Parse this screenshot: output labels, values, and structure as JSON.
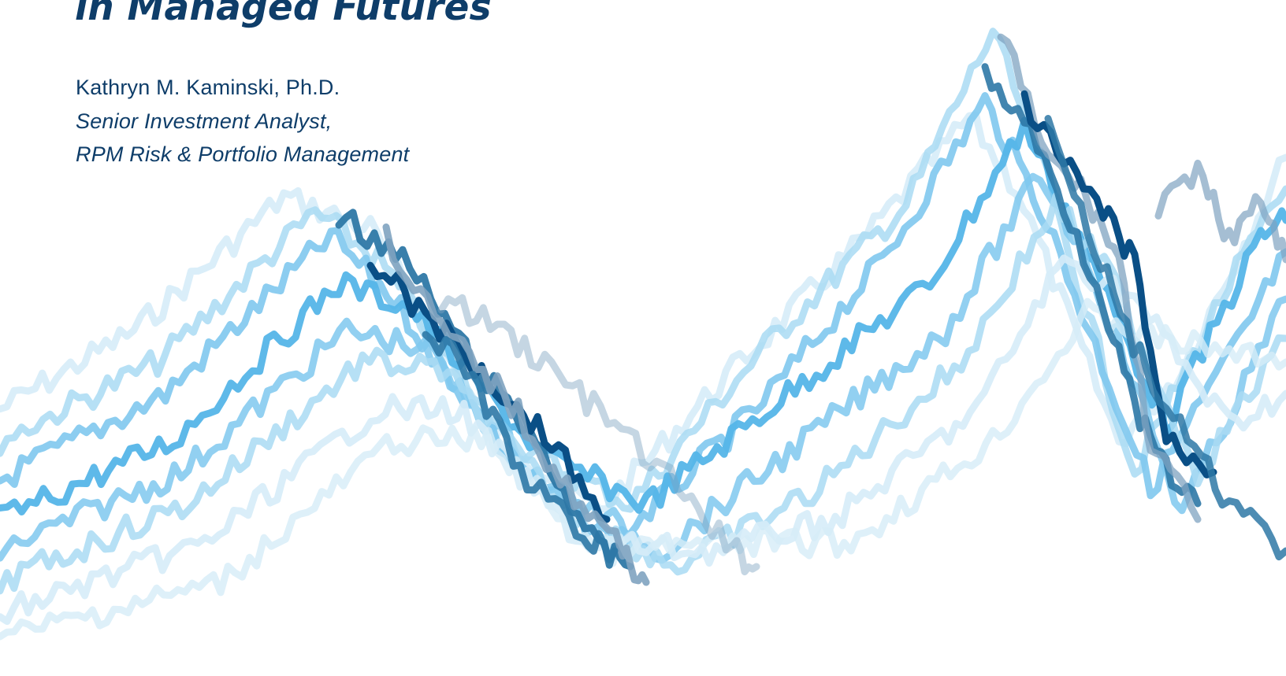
{
  "cover": {
    "title_line": "in Managed Futures",
    "author": "Kathryn M. Kaminski, Ph.D.",
    "role_line_1": "Senior Investment Analyst,",
    "role_line_2": "RPM Risk & Portfolio Management"
  },
  "art": {
    "description_icon": "stylized-price-paths-illustration",
    "palette": [
      "#d6ecf8",
      "#a9daf3",
      "#7fc8ee",
      "#55b5e8",
      "#2e78a6",
      "#0a4f86",
      "#7fa3c0"
    ]
  }
}
